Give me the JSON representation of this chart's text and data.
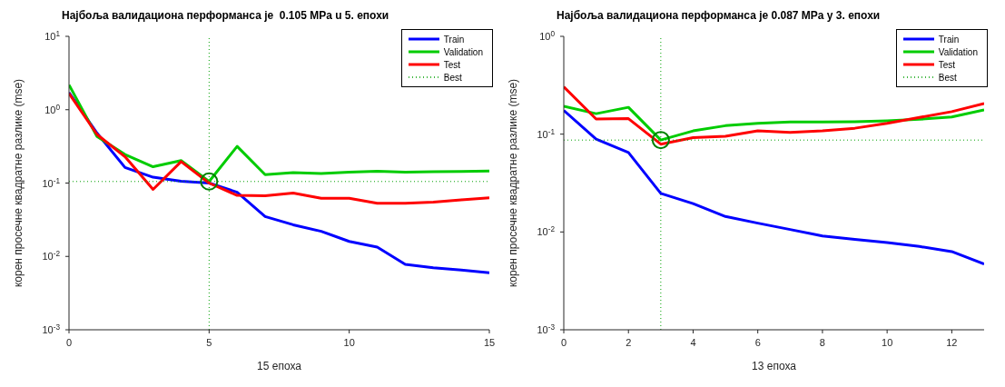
{
  "chart_data": [
    {
      "type": "line",
      "title": "Најбоља валидациона перформанса је  0.105 MPa u 5. епохи",
      "xlabel": "15 епоха",
      "ylabel": "корен просечне квадратне разлике (mse)",
      "log": "y",
      "legend": "top right",
      "grid": false,
      "x": [
        0,
        1,
        2,
        3,
        4,
        5,
        6,
        7,
        8,
        9,
        10,
        11,
        12,
        13,
        14,
        15
      ],
      "xlim": [
        0,
        15
      ],
      "xticks": [
        0,
        5,
        10,
        15
      ],
      "ylim": [
        0.001,
        10
      ],
      "yticks": [
        {
          "value": 0.001,
          "label": "10$^{-3}$"
        },
        {
          "value": 0.01,
          "label": "10$^{-2}$"
        },
        {
          "value": 0.1,
          "label": "10$^{-1}$"
        },
        {
          "value": 1,
          "label": "10$^{0}$"
        },
        {
          "value": 10,
          "label": "10$^{1}$"
        }
      ],
      "series": [
        {
          "name": "Train",
          "color": "#0000ff",
          "values": [
            1.72,
            0.48,
            0.163,
            0.12,
            0.106,
            0.1,
            0.075,
            0.035,
            0.027,
            0.022,
            0.016,
            0.0134,
            0.0078,
            0.007,
            0.0065,
            0.006
          ]
        },
        {
          "name": "Validation",
          "color": "#00cc00",
          "values": [
            2.18,
            0.43,
            0.245,
            0.167,
            0.203,
            0.105,
            0.316,
            0.13,
            0.139,
            0.135,
            0.141,
            0.145,
            0.141,
            0.143,
            0.144,
            0.146
          ]
        },
        {
          "name": "Test",
          "color": "#ff0000",
          "values": [
            1.67,
            0.46,
            0.228,
            0.082,
            0.196,
            0.1,
            0.068,
            0.067,
            0.073,
            0.062,
            0.062,
            0.053,
            0.053,
            0.055,
            0.059,
            0.063
          ]
        },
        {
          "type": "line",
          "name": "Best",
          "color": "#00a000",
          "line_style": "dotted",
          "x": [
            0,
            15
          ],
          "values": [
            0.105,
            0.105
          ]
        },
        {
          "type": "scatter",
          "marker": "circle",
          "color": "#008000",
          "x": [
            5
          ],
          "values": [
            0.105
          ]
        }
      ],
      "ref_lines": [
        {
          "axis": "x",
          "value": 5,
          "color": "#00a000",
          "line_style": "dotted"
        }
      ]
    },
    {
      "type": "line",
      "title": "Најбоља валидациона перформанса је 0.087 MPa у 3. епохи",
      "xlabel": "13 епоха",
      "ylabel": "корен просечне квадратне разлике (mse)",
      "log": "y",
      "legend": "top right",
      "grid": false,
      "x": [
        0,
        1,
        2,
        3,
        4,
        5,
        6,
        7,
        8,
        9,
        10,
        11,
        12,
        13
      ],
      "xlim": [
        0,
        13
      ],
      "xticks": [
        0,
        2,
        4,
        6,
        8,
        10,
        12
      ],
      "ylim": [
        0.001,
        1
      ],
      "yticks": [
        {
          "value": 0.001,
          "label": "10$^{-3}$"
        },
        {
          "value": 0.01,
          "label": "10$^{-2}$"
        },
        {
          "value": 0.1,
          "label": "10$^{-1}$"
        },
        {
          "value": 1,
          "label": "10$^{0}$"
        }
      ],
      "series": [
        {
          "name": "Train",
          "color": "#0000ff",
          "values": [
            0.175,
            0.089,
            0.065,
            0.0248,
            0.0195,
            0.0144,
            0.0123,
            0.0106,
            0.0091,
            0.0084,
            0.0078,
            0.0071,
            0.0063,
            0.0047
          ]
        },
        {
          "name": "Validation",
          "color": "#00cc00",
          "values": [
            0.193,
            0.162,
            0.188,
            0.087,
            0.108,
            0.122,
            0.129,
            0.133,
            0.133,
            0.134,
            0.137,
            0.142,
            0.15,
            0.177
          ]
        },
        {
          "name": "Test",
          "color": "#ff0000",
          "values": [
            0.305,
            0.143,
            0.144,
            0.079,
            0.092,
            0.095,
            0.108,
            0.104,
            0.108,
            0.115,
            0.129,
            0.148,
            0.17,
            0.206
          ]
        },
        {
          "type": "line",
          "name": "Best",
          "color": "#00a000",
          "line_style": "dotted",
          "x": [
            0,
            13
          ],
          "values": [
            0.087,
            0.087
          ]
        },
        {
          "type": "scatter",
          "marker": "circle",
          "color": "#008000",
          "x": [
            3
          ],
          "values": [
            0.087
          ]
        }
      ],
      "ref_lines": [
        {
          "axis": "x",
          "value": 3,
          "color": "#00a000",
          "line_style": "dotted"
        }
      ]
    }
  ]
}
